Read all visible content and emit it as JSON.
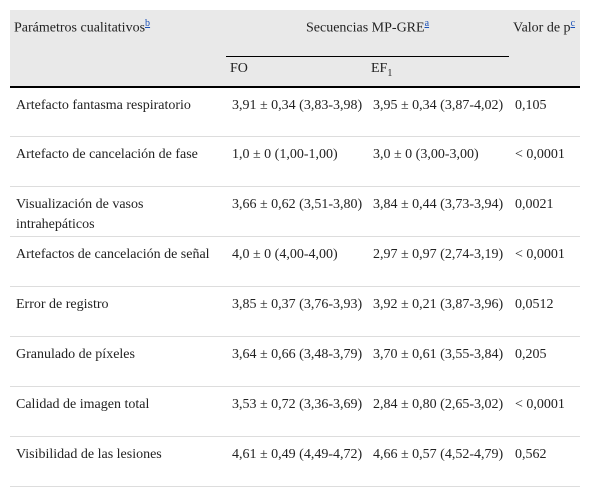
{
  "header": {
    "parameter": {
      "text": "Parámetros cualitativos",
      "note": "b"
    },
    "sequences": {
      "text": "Secuencias MP-GRE",
      "note": "a"
    },
    "p_value": {
      "text": "Valor de p",
      "note": "c"
    },
    "fo": "FO",
    "ef": {
      "text": "EF",
      "sub": "1"
    }
  },
  "rows": [
    [
      "Artefacto fantasma respiratorio",
      "3,91 ± 0,34 (3,83-3,98)",
      "3,95 ± 0,34 (3,87-4,02)",
      "0,105"
    ],
    [
      "Artefacto de cancelación de fase",
      "1,0 ± 0 (1,00-1,00)",
      "3,0 ± 0 (3,00-3,00)",
      "< 0,0001"
    ],
    [
      "Visualización de vasos intrahepáticos",
      "3,66 ± 0,62 (3,51-3,80)",
      "3,84 ± 0,44 (3,73-3,94)",
      "0,0021"
    ],
    [
      "Artefactos de cancelación de señal",
      "4,0 ± 0 (4,00-4,00)",
      "2,97 ± 0,97 (2,74-3,19)",
      "< 0,0001"
    ],
    [
      "Error de registro",
      "3,85 ± 0,37 (3,76-3,93)",
      "3,92 ± 0,21 (3,87-3,96)",
      "0,0512"
    ],
    [
      "Granulado de píxeles",
      "3,64 ± 0,66 (3,48-3,79)",
      "3,70 ± 0,61 (3,55-3,84)",
      "0,205"
    ],
    [
      "Calidad de imagen total",
      "3,53 ± 0,72 (3,36-3,69)",
      "2,84 ± 0,80 (2,65-3,02)",
      "< 0,0001"
    ],
    [
      "Visibilidad de las lesiones",
      "4,61 ± 0,49 (4,49-4,72)",
      "4,66 ± 0,57 (4,52-4,79)",
      "0,562"
    ]
  ]
}
